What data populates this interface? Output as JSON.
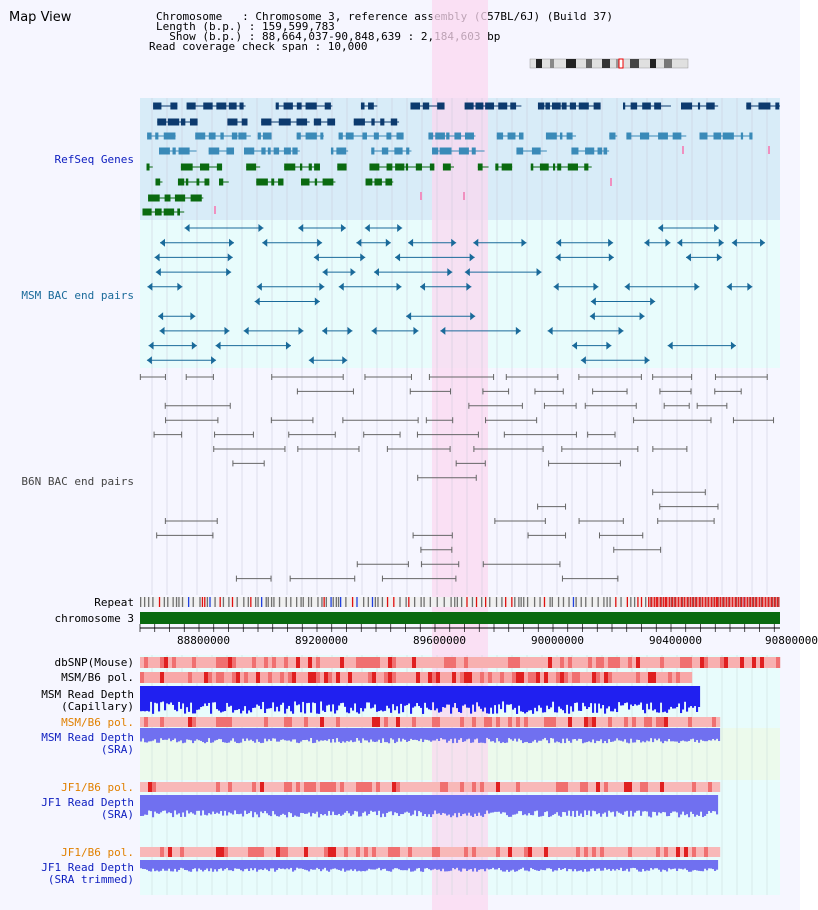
{
  "header": {
    "view_title": "Map View",
    "info_lines": [
      "Chromosome   : Chromosome 3, reference assembly (C57BL/6J) (Build 37)",
      "Length (b.p.) : 159,599,783",
      "  Show (b.p.) : 88,664,037-90,848,639 : 2,184,603 bp",
      "Read coverage check span : 10,000"
    ]
  },
  "colors": {
    "background": "#f6f6ff",
    "refseq_bg": "#d8ecf8",
    "msm_bac_bg": "#e8fcfc",
    "b6n_bac_bg": "#f6f6ff",
    "highlight": "#fbd8f0",
    "refseq_dark": "#0c3a6e",
    "refseq_mid": "#3a8ab8",
    "refseq_green": "#0a6a10",
    "msm_bac": "#1a6a9a",
    "b6n_bac": "#666666",
    "chromosome_bar": "#0a6a10",
    "depth_blue": "#3030f0"
  },
  "tracks": {
    "refseq_label": "RefSeq Genes",
    "msm_bac_label": "MSM BAC end pairs",
    "b6n_bac_label": "B6N BAC end pairs",
    "repeat_label": "Repeat",
    "chromosome_label": "chromosome 3",
    "dbsnp_label": "dbSNP(Mouse)",
    "msm_b6_pol_label": "MSM/B6 pol.",
    "msm_depth_cap_label_1": "MSM Read Depth",
    "msm_depth_cap_label_2": "(Capillary)",
    "msm_b6_pol_sra_label": "MSM/B6 pol.",
    "msm_depth_sra_label_1": "MSM Read Depth",
    "msm_depth_sra_label_2": "(SRA)",
    "jf1_pol_label": "JF1/B6 pol.",
    "jf1_depth_label_1": "JF1 Read Depth",
    "jf1_depth_label_2": "(SRA)",
    "jf1_pol_trim_label": "JF1/B6 pol.",
    "jf1_depth_trim_label_1": "JF1 Read Depth",
    "jf1_depth_trim_label_2": "(SRA trimmed)"
  },
  "ruler": {
    "ticks": [
      "88800000",
      "89200000",
      "89600000",
      "90000000",
      "90400000",
      "90800000"
    ]
  },
  "icons": {
    "ideogram": "chromosome-ideogram-icon"
  }
}
